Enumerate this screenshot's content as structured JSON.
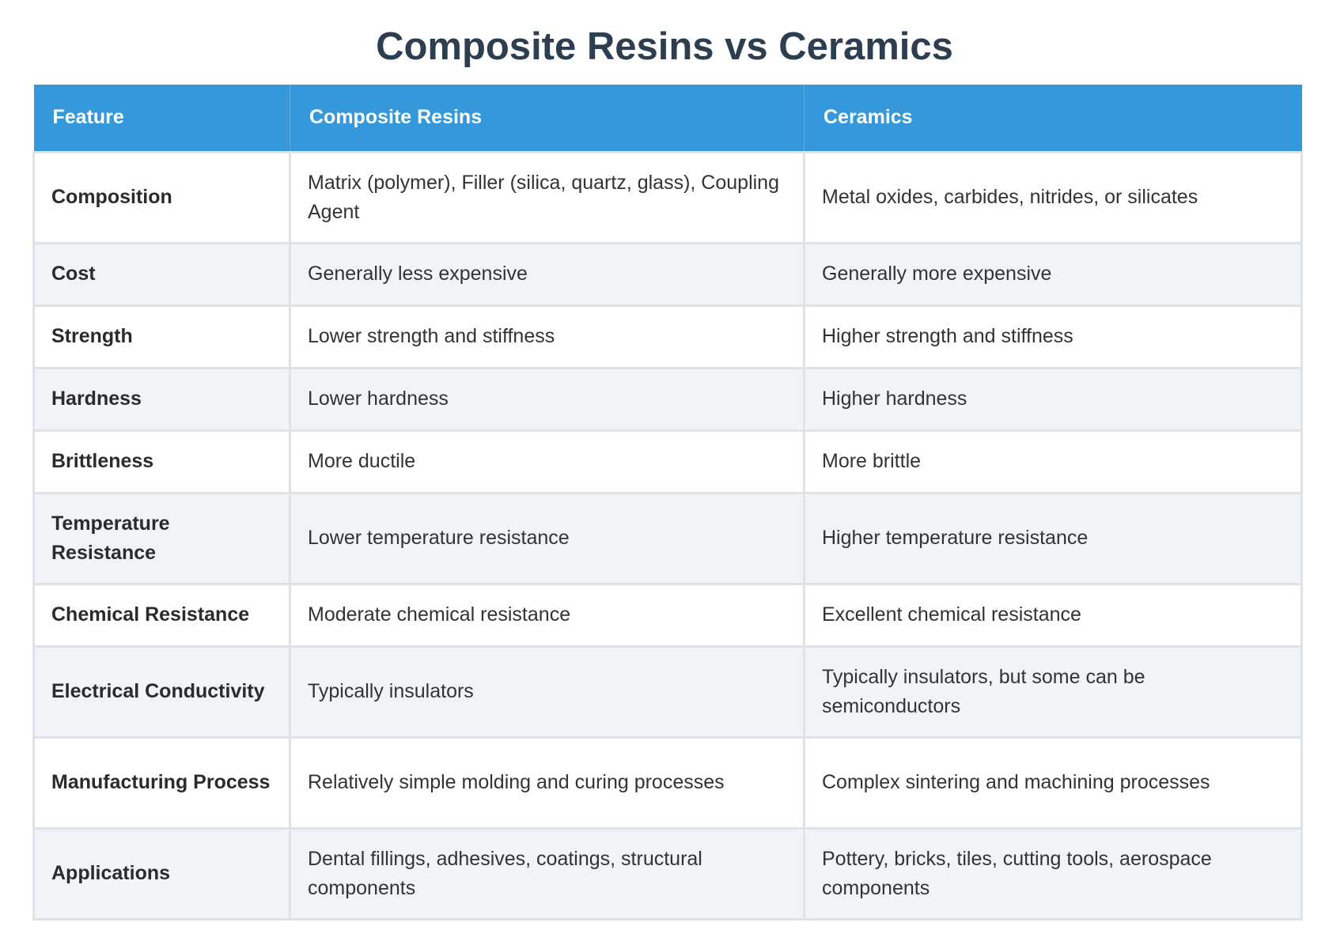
{
  "title": "Composite Resins vs Ceramics",
  "colors": {
    "title": "#2c3e50",
    "header_bg": "#3498db",
    "header_text": "#ffffff",
    "row_alt_bg": "#f0f4f9",
    "border": "#dfe3e8"
  },
  "table": {
    "headers": [
      "Feature",
      "Composite Resins",
      "Ceramics"
    ],
    "rows": [
      [
        "Composition",
        "Matrix (polymer), Filler (silica, quartz, glass), Coupling Agent",
        "Metal oxides, carbides, nitrides, or silicates"
      ],
      [
        "Cost",
        "Generally less expensive",
        "Generally more expensive"
      ],
      [
        "Strength",
        "Lower strength and stiffness",
        "Higher strength and stiffness"
      ],
      [
        "Hardness",
        "Lower hardness",
        "Higher hardness"
      ],
      [
        "Brittleness",
        "More ductile",
        "More brittle"
      ],
      [
        "Temperature Resistance",
        "Lower temperature resistance",
        "Higher temperature resistance"
      ],
      [
        "Chemical Resistance",
        "Moderate chemical resistance",
        "Excellent chemical resistance"
      ],
      [
        "Electrical Conductivity",
        "Typically insulators",
        "Typically insulators, but some can be semiconductors"
      ],
      [
        "Manufacturing Process",
        "Relatively simple molding and curing processes",
        "Complex sintering and machining processes"
      ],
      [
        "Applications",
        "Dental fillings, adhesives, coatings, structural components",
        "Pottery, bricks, tiles, cutting tools, aerospace components"
      ]
    ]
  }
}
